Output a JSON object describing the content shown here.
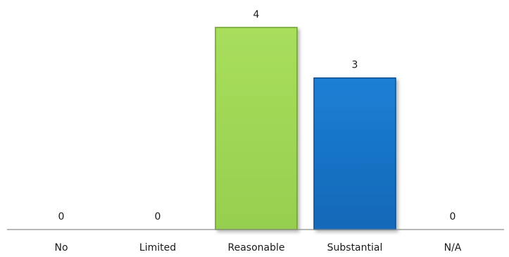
{
  "chart_data": {
    "type": "bar",
    "categories": [
      "No",
      "Limited",
      "Reasonable",
      "Substantial",
      "N/A"
    ],
    "values": [
      0,
      0,
      4,
      3,
      0
    ],
    "bar_colors": [
      "#a3d65a",
      "#a3d65a",
      "#a3d65a",
      "#1976c9",
      "#1976c9"
    ],
    "bar_edge_colors": [
      "#6e9e2e",
      "#6e9e2e",
      "#6e9e2e",
      "#0d4f8f",
      "#0d4f8f"
    ],
    "title": "",
    "xlabel": "",
    "ylabel": "",
    "ylim": [
      0,
      4.6
    ],
    "grid": false,
    "legend": "none",
    "data_labels": true
  }
}
